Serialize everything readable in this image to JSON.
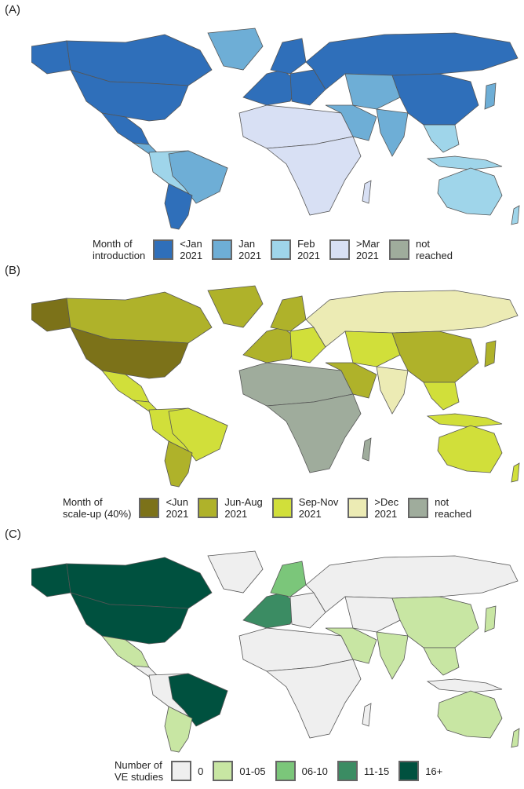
{
  "panels": [
    {
      "label": "(A)",
      "legend_title": "Month of\nintroduction",
      "legend": [
        {
          "label": "<Jan\n2021",
          "color": "#2f6fba"
        },
        {
          "label": "Jan\n2021",
          "color": "#6eaed6"
        },
        {
          "label": "Feb\n2021",
          "color": "#9fd5ea"
        },
        {
          "label": ">Mar\n2021",
          "color": "#d8e0f4"
        },
        {
          "label": "not\nreached",
          "color": "#9fac9c"
        }
      ]
    },
    {
      "label": "(B)",
      "legend_title": "Month of\nscale-up (40%)",
      "legend": [
        {
          "label": "<Jun\n2021",
          "color": "#7c7219"
        },
        {
          "label": "Jun-Aug\n2021",
          "color": "#afb22a"
        },
        {
          "label": "Sep-Nov\n2021",
          "color": "#d1df3a"
        },
        {
          "label": ">Dec\n2021",
          "color": "#ecebb4"
        },
        {
          "label": "not\nreached",
          "color": "#9fac9c"
        }
      ]
    },
    {
      "label": "(C)",
      "legend_title": "Number of\nVE studies",
      "legend": [
        {
          "label": "0",
          "color": "#efefef"
        },
        {
          "label": "01-05",
          "color": "#c8e6a3"
        },
        {
          "label": "06-10",
          "color": "#7bc67a"
        },
        {
          "label": "11-15",
          "color": "#3b8c63"
        },
        {
          "label": "16+",
          "color": "#00513f"
        }
      ]
    }
  ]
}
